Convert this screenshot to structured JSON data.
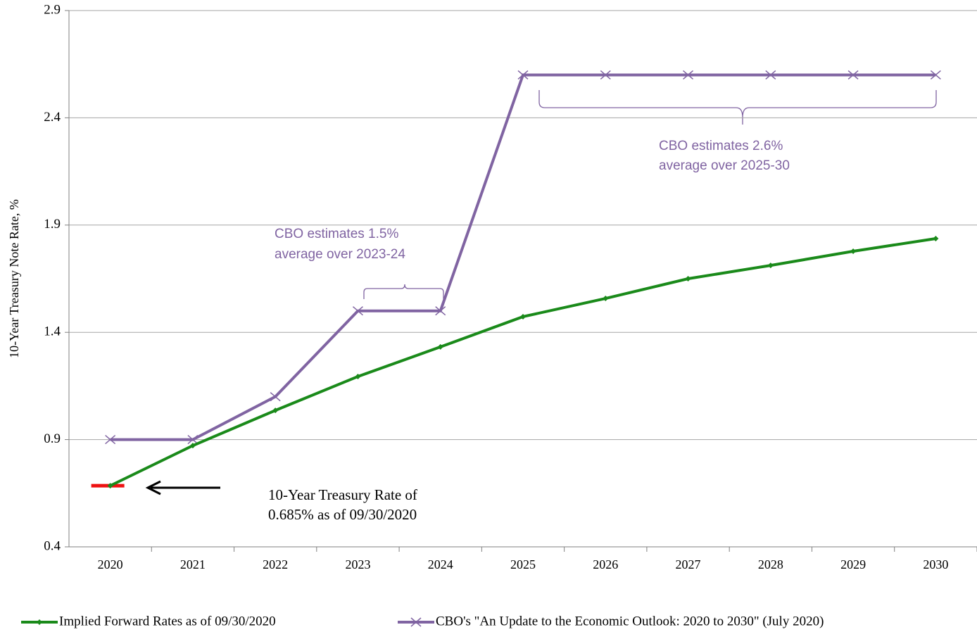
{
  "chart_data": {
    "type": "line",
    "y_label": "10-Year Treasury Note Rate, %",
    "categories": [
      "2020",
      "2021",
      "2022",
      "2023",
      "2024",
      "2025",
      "2026",
      "2027",
      "2028",
      "2029",
      "2030"
    ],
    "series": [
      {
        "name": "Implied Forward Rates as of 09/30/2020",
        "color": "#1a8a1a",
        "marker": "diamond",
        "values": [
          0.685,
          0.872,
          1.036,
          1.194,
          1.332,
          1.473,
          1.558,
          1.65,
          1.712,
          1.778,
          1.837
        ]
      },
      {
        "name": "CBO's \"An Update to the Economic Outlook: 2020 to 2030\" (July 2020)",
        "color": "#8064a2",
        "marker": "x",
        "values": [
          0.9,
          0.9,
          1.1,
          1.5,
          1.5,
          2.6,
          2.6,
          2.6,
          2.6,
          2.6,
          2.6
        ]
      }
    ],
    "ylim": [
      0.4,
      2.9
    ],
    "yticks": [
      0.4,
      0.9,
      1.4,
      1.9,
      2.4,
      2.9
    ],
    "grid": true,
    "current_rate": {
      "value": 0.685,
      "color": "#ee1111"
    },
    "annotations": [
      "CBO estimates 1.5%",
      "average over 2023-24",
      "CBO estimates 2.6%",
      "average over 2025-30",
      "10-Year Treasury Rate of",
      "0.685% as of  09/30/2020"
    ],
    "legend": "bottom"
  }
}
